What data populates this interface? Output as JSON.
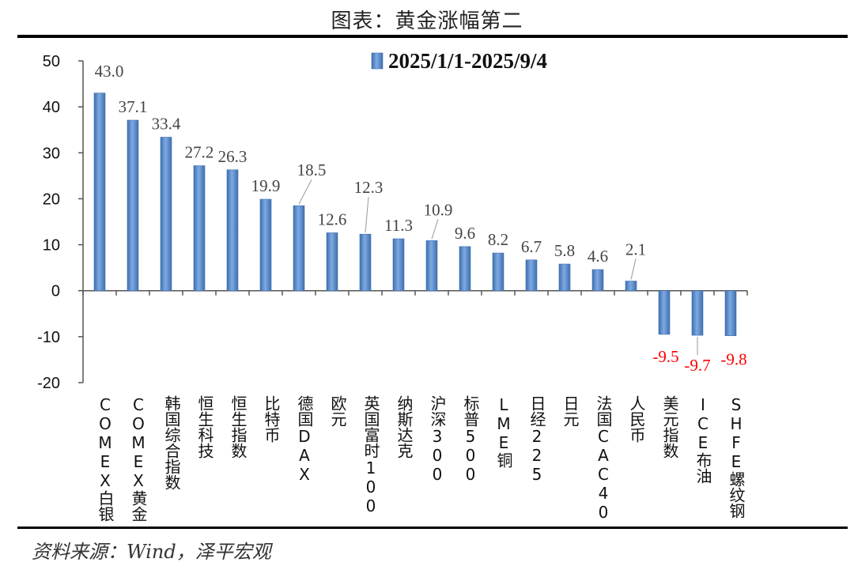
{
  "page_title": "图表：黄金涨幅第二",
  "source": "资料来源：Wind，泽平宏观",
  "chart_data": {
    "type": "bar",
    "title": "图表：黄金涨幅第二",
    "xlabel": "",
    "ylabel": "",
    "ylim": [
      -20,
      50
    ],
    "yticks": [
      50,
      40,
      30,
      20,
      10,
      0,
      -10,
      -20
    ],
    "grid": false,
    "legend_position": "top-center",
    "colors": {
      "bar": "#5b8fd1",
      "bar_edge": "#3f6fae",
      "positive_label": "#444444",
      "negative_label": "#ff0000"
    },
    "categories": [
      "COMEX白银",
      "COMEX黄金",
      "韩国综合指数",
      "恒生科技",
      "恒生指数",
      "比特币",
      "德国DAX",
      "欧元",
      "英国富时100",
      "纳斯达克",
      "沪深300",
      "标普500",
      "LME铜",
      "日经225",
      "日元",
      "法国CAC40",
      "人民币",
      "美元指数",
      "ICE布油",
      "SHFE螺纹钢"
    ],
    "series": [
      {
        "name": "2025/1/1-2025/9/4",
        "values": [
          43.0,
          37.1,
          33.4,
          27.2,
          26.3,
          19.9,
          18.5,
          12.6,
          12.3,
          11.3,
          10.9,
          9.6,
          8.2,
          6.7,
          5.8,
          4.6,
          2.1,
          -9.5,
          -9.7,
          -9.8
        ]
      }
    ],
    "data_labels": [
      "43.0",
      "37.1",
      "33.4",
      "27.2",
      "26.3",
      "19.9",
      "18.5",
      "12.6",
      "12.3",
      "11.3",
      "10.9",
      "9.6",
      "8.2",
      "6.7",
      "5.8",
      "4.6",
      "2.1",
      "-9.5",
      "-9.7",
      "-9.8"
    ]
  }
}
